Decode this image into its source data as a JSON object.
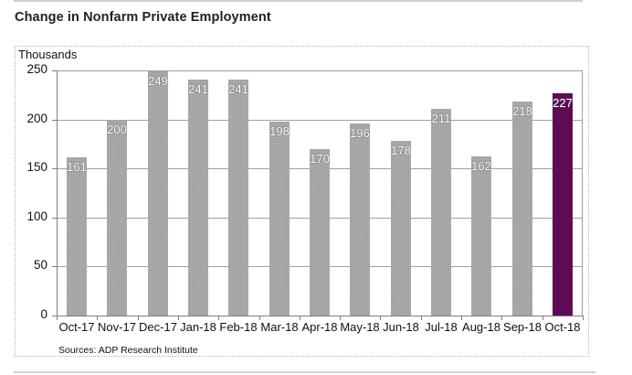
{
  "page": {
    "title": "Change in Nonfarm Private Employment",
    "source": "Sources: ADP Research Institute"
  },
  "chart_data": {
    "type": "bar",
    "title": "Change in Nonfarm Private Employment",
    "xlabel": "",
    "ylabel": "Thousands",
    "ylim": [
      0,
      250
    ],
    "yticks": [
      0,
      50,
      100,
      150,
      200,
      250
    ],
    "grid": true,
    "legend": null,
    "categories": [
      "Oct-17",
      "Nov-17",
      "Dec-17",
      "Jan-18",
      "Feb-18",
      "Mar-18",
      "Apr-18",
      "May-18",
      "Jun-18",
      "Jul-18",
      "Aug-18",
      "Sep-18",
      "Oct-18"
    ],
    "values": [
      161,
      200,
      249,
      241,
      241,
      198,
      170,
      196,
      178,
      211,
      162,
      218,
      227
    ],
    "data_labels": true,
    "highlight_index": 12,
    "colors": {
      "bar": "#a8a8a8",
      "highlight": "#5e0a54",
      "label_text": "#ffffff"
    },
    "annotations": [
      "Sources: ADP Research Institute"
    ]
  }
}
